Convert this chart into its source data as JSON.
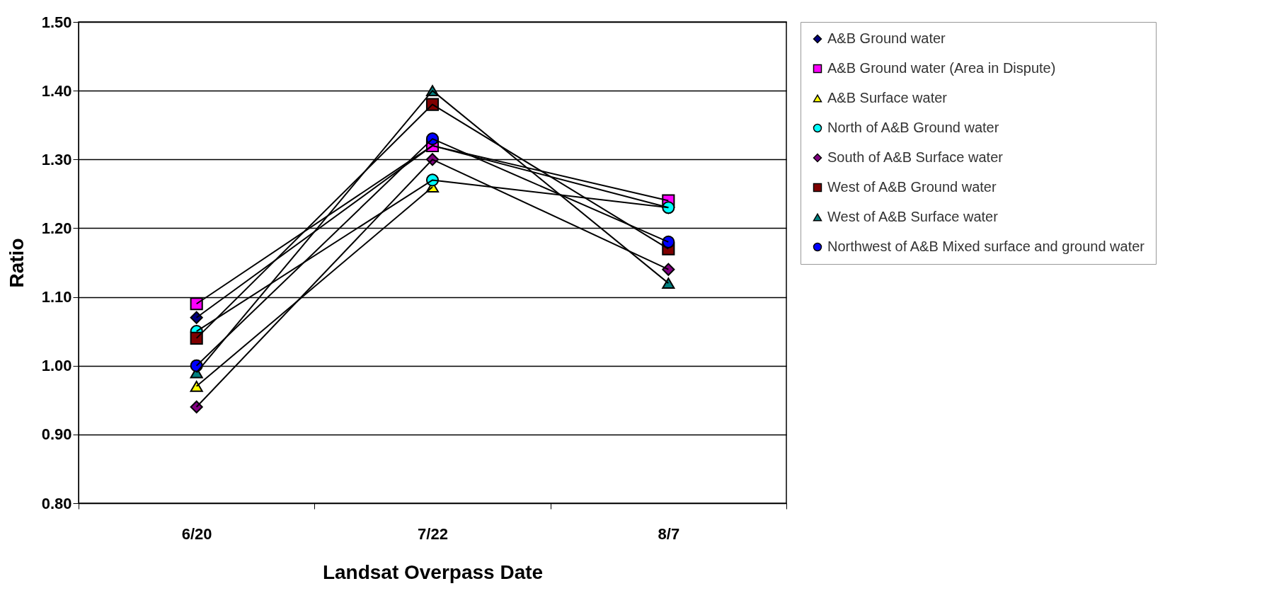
{
  "chart_data": {
    "type": "line",
    "xlabel": "Landsat Overpass Date",
    "ylabel": "Ratio",
    "categories": [
      "6/20",
      "7/22",
      "8/7"
    ],
    "series": [
      {
        "name": "A&B Ground water",
        "color": "#000080",
        "marker": "diamond",
        "values": [
          1.07,
          1.32,
          1.23
        ]
      },
      {
        "name": "A&B Ground water (Area in Dispute)",
        "color": "#ff00ff",
        "marker": "square",
        "values": [
          1.09,
          1.32,
          1.24
        ]
      },
      {
        "name": "A&B Surface water",
        "color": "#ffff00",
        "marker": "triangle",
        "values": [
          0.97,
          1.26,
          null
        ]
      },
      {
        "name": "North of A&B Ground water",
        "color": "#00ffff",
        "marker": "circle",
        "values": [
          1.05,
          1.27,
          1.23
        ]
      },
      {
        "name": "South of A&B Surface water",
        "color": "#800080",
        "marker": "diamond",
        "values": [
          0.94,
          1.3,
          1.14
        ]
      },
      {
        "name": "West of A&B Ground water",
        "color": "#800000",
        "marker": "square",
        "values": [
          1.04,
          1.38,
          1.17
        ]
      },
      {
        "name": "West of A&B Surface water",
        "color": "#008080",
        "marker": "triangle",
        "values": [
          0.99,
          1.4,
          1.12
        ]
      },
      {
        "name": "Northwest of A&B Mixed surface and ground water",
        "color": "#0000ff",
        "marker": "circle",
        "values": [
          1.0,
          1.33,
          1.18
        ]
      }
    ],
    "ylim": [
      0.8,
      1.5
    ],
    "yticks": [
      {
        "value": 0.8,
        "label": "0.80"
      },
      {
        "value": 0.9,
        "label": "0.90"
      },
      {
        "value": 1.0,
        "label": "1.00"
      },
      {
        "value": 1.1,
        "label": "1.10"
      },
      {
        "value": 1.2,
        "label": "1.20"
      },
      {
        "value": 1.3,
        "label": "1.30"
      },
      {
        "value": 1.4,
        "label": "1.40"
      },
      {
        "value": 1.5,
        "label": "1.50"
      }
    ],
    "grid": "y",
    "legend": "right",
    "line_style": "solid"
  }
}
